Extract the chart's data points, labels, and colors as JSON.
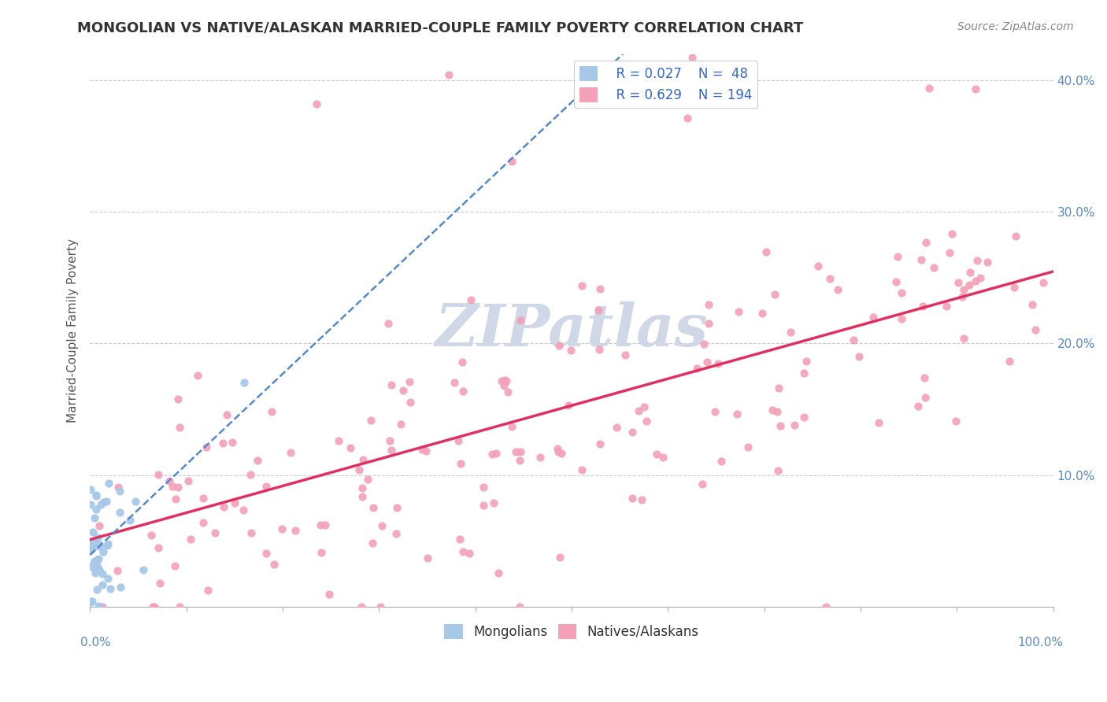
{
  "title": "MONGOLIAN VS NATIVE/ALASKAN MARRIED-COUPLE FAMILY POVERTY CORRELATION CHART",
  "source": "Source: ZipAtlas.com",
  "ylabel": "Married-Couple Family Poverty",
  "mongolian_R": 0.027,
  "mongolian_N": 48,
  "native_R": 0.629,
  "native_N": 194,
  "mongolian_color": "#a8c8e8",
  "native_color": "#f4a0b8",
  "mongolian_line_color": "#5588cc",
  "native_line_color": "#e03060",
  "background_color": "#ffffff",
  "grid_color": "#cccccc",
  "watermark_color": "#d0d8e8",
  "title_color": "#333333",
  "axis_label_color": "#5588cc",
  "legend_text_color": "#3366cc",
  "xlim": [
    0,
    1
  ],
  "ylim": [
    0,
    0.42
  ],
  "mongolian_seed": 7,
  "native_seed": 99
}
